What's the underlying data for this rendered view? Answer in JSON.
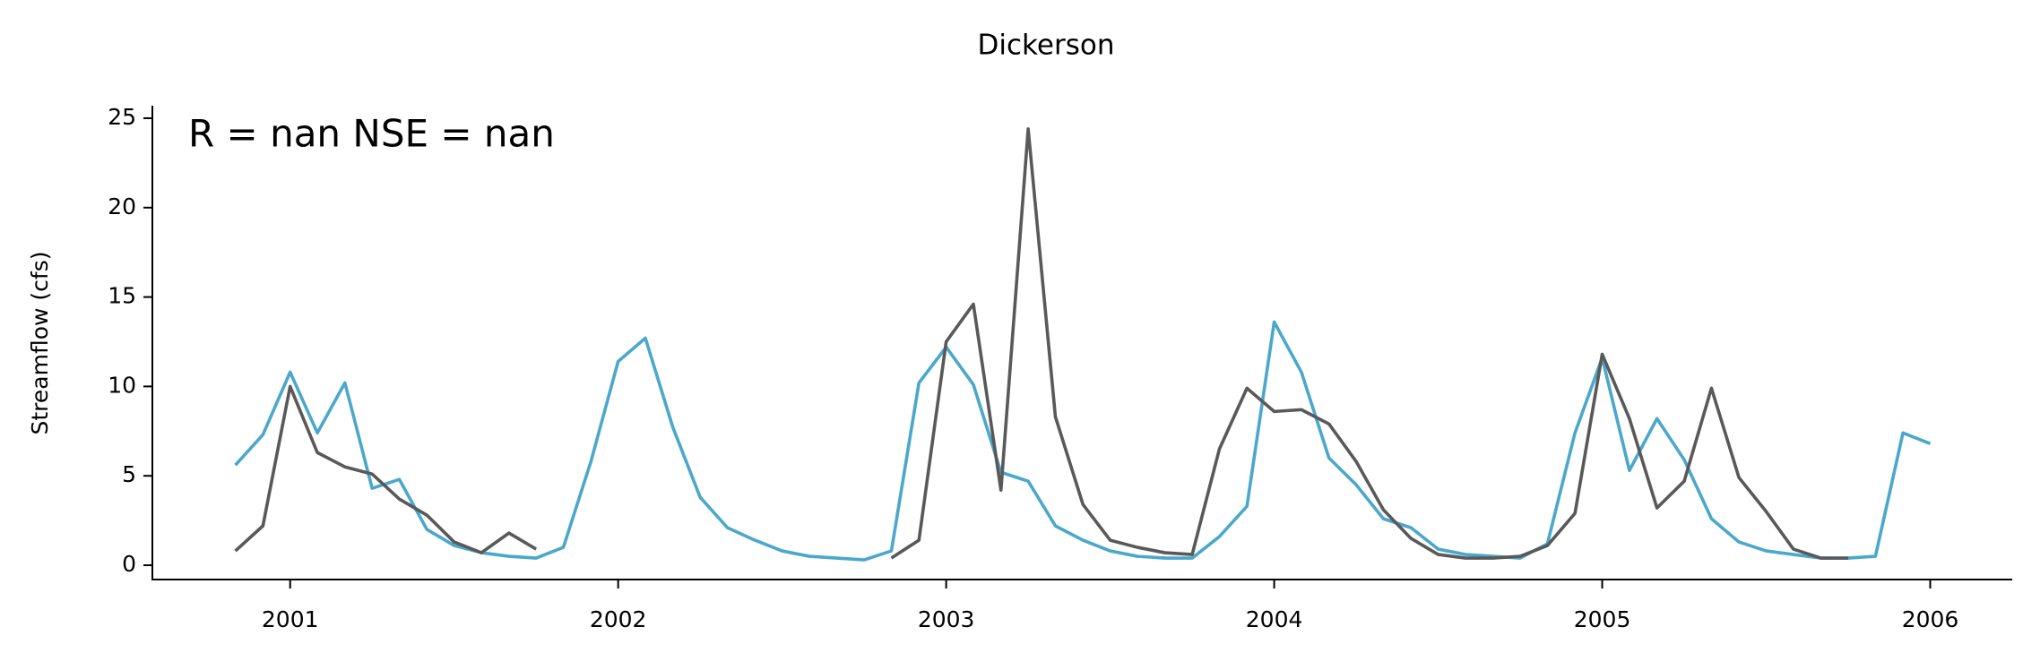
{
  "chart_data": {
    "type": "line",
    "title": "Dickerson",
    "ylabel": "Streamflow (cfs)",
    "annotation": "R = nan  NSE = nan",
    "x": [
      2000.833,
      2000.917,
      2001.0,
      2001.083,
      2001.167,
      2001.25,
      2001.333,
      2001.417,
      2001.5,
      2001.583,
      2001.667,
      2001.75,
      2001.833,
      2001.917,
      2002.0,
      2002.083,
      2002.167,
      2002.25,
      2002.333,
      2002.417,
      2002.5,
      2002.583,
      2002.667,
      2002.75,
      2002.833,
      2002.917,
      2003.0,
      2003.083,
      2003.167,
      2003.25,
      2003.333,
      2003.417,
      2003.5,
      2003.583,
      2003.667,
      2003.75,
      2003.833,
      2003.917,
      2004.0,
      2004.083,
      2004.167,
      2004.25,
      2004.333,
      2004.417,
      2004.5,
      2004.583,
      2004.667,
      2004.75,
      2004.833,
      2004.917,
      2005.0,
      2005.083,
      2005.167,
      2005.25,
      2005.333,
      2005.417,
      2005.5,
      2005.583,
      2005.667,
      2005.75,
      2005.833,
      2005.917,
      2006.0
    ],
    "series": [
      {
        "color": "#4ba8cb",
        "values": [
          5.6,
          7.3,
          10.8,
          7.4,
          10.2,
          4.3,
          4.8,
          2.0,
          1.1,
          0.7,
          0.5,
          0.4,
          1.0,
          5.8,
          11.4,
          12.7,
          7.7,
          3.8,
          2.1,
          1.4,
          0.8,
          0.5,
          0.4,
          0.3,
          0.8,
          10.2,
          12.2,
          10.1,
          5.2,
          4.7,
          2.2,
          1.4,
          0.8,
          0.5,
          0.4,
          0.4,
          1.6,
          3.3,
          13.6,
          10.8,
          6.0,
          4.5,
          2.6,
          2.1,
          0.9,
          0.6,
          0.5,
          0.4,
          1.2,
          7.4,
          11.6,
          5.3,
          8.2,
          5.9,
          2.6,
          1.3,
          0.8,
          0.6,
          0.4,
          0.4,
          0.5,
          7.4,
          6.8
        ]
      },
      {
        "color": "#595959",
        "values": [
          0.8,
          2.2,
          10.0,
          6.3,
          5.5,
          5.1,
          3.7,
          2.8,
          1.3,
          0.7,
          1.8,
          0.9,
          null,
          null,
          null,
          null,
          null,
          null,
          null,
          null,
          null,
          null,
          null,
          null,
          0.4,
          1.4,
          12.5,
          14.6,
          4.2,
          24.4,
          8.3,
          3.4,
          1.4,
          1.0,
          0.7,
          0.6,
          6.5,
          9.9,
          8.6,
          8.7,
          7.9,
          5.8,
          3.1,
          1.5,
          0.6,
          0.4,
          0.4,
          0.5,
          1.1,
          2.9,
          11.8,
          8.2,
          3.2,
          4.7,
          9.9,
          4.9,
          3.0,
          0.9,
          0.4,
          0.4,
          null,
          null,
          null
        ]
      }
    ],
    "xlim": [
      2000.58,
      2006.25
    ],
    "xticks": [
      2001,
      2002,
      2003,
      2004,
      2005,
      2006
    ],
    "ylim": [
      -0.8,
      25.65
    ],
    "yticks": [
      0,
      5,
      10,
      15,
      20,
      25
    ]
  }
}
